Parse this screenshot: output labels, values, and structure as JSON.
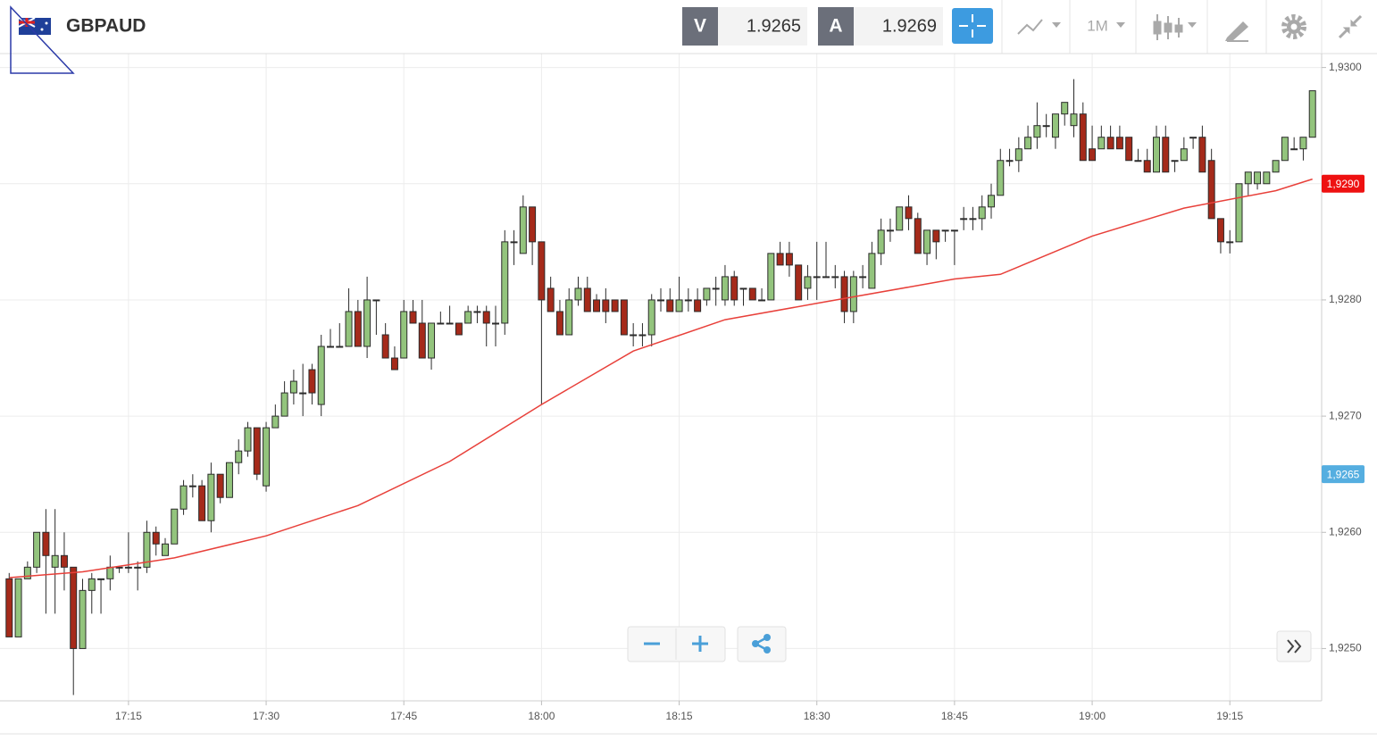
{
  "header": {
    "symbol": "GBPAUD",
    "bid_label": "V",
    "bid": 1.9265,
    "ask_label": "A",
    "ask": 1.9269,
    "timeframe": "1M"
  },
  "chart_data": {
    "type": "candlestick",
    "x": [
      "17:02",
      "17:03",
      "17:04",
      "17:05",
      "17:06",
      "17:07",
      "17:08",
      "17:09",
      "17:10",
      "17:11",
      "17:12",
      "17:13",
      "17:14",
      "17:15",
      "17:16",
      "17:17",
      "17:18",
      "17:19",
      "17:20",
      "17:21",
      "17:22",
      "17:23",
      "17:24",
      "17:25",
      "17:26",
      "17:27",
      "17:28",
      "17:29",
      "17:30",
      "17:31",
      "17:32",
      "17:33",
      "17:34",
      "17:35",
      "17:36",
      "17:37",
      "17:38",
      "17:39",
      "17:40",
      "17:41",
      "17:42",
      "17:43",
      "17:44",
      "17:45",
      "17:46",
      "17:47",
      "17:48",
      "17:49",
      "17:50",
      "17:51",
      "17:52",
      "17:53",
      "17:54",
      "17:55",
      "17:56",
      "17:57",
      "17:58",
      "17:59",
      "18:00",
      "18:01",
      "18:02",
      "18:03",
      "18:04",
      "18:05",
      "18:06",
      "18:07",
      "18:08",
      "18:09",
      "18:10",
      "18:11",
      "18:12",
      "18:13",
      "18:14",
      "18:15",
      "18:16",
      "18:17",
      "18:18",
      "18:19",
      "18:20",
      "18:21",
      "18:22",
      "18:23",
      "18:24",
      "18:25",
      "18:26",
      "18:27",
      "18:28",
      "18:29",
      "18:30",
      "18:31",
      "18:32",
      "18:33",
      "18:34",
      "18:35",
      "18:36",
      "18:37",
      "18:38",
      "18:39",
      "18:40",
      "18:41",
      "18:42",
      "18:43",
      "18:44",
      "18:45",
      "18:46",
      "18:47",
      "18:48",
      "18:49",
      "18:50",
      "18:51",
      "18:52",
      "18:53",
      "18:54",
      "18:55",
      "18:56",
      "18:57",
      "18:58",
      "18:59",
      "19:00",
      "19:01",
      "19:02",
      "19:03",
      "19:04",
      "19:05",
      "19:06",
      "19:07",
      "19:08",
      "19:09",
      "19:10",
      "19:11",
      "19:12",
      "19:13",
      "19:14",
      "19:15",
      "19:16",
      "19:17",
      "19:18",
      "19:19",
      "19:20",
      "19:21",
      "19:22",
      "19:23",
      "19:24"
    ],
    "open": [
      1.9256,
      1.9251,
      1.9256,
      1.9257,
      1.926,
      1.9257,
      1.9258,
      1.9257,
      1.925,
      1.9255,
      1.9256,
      1.9256,
      1.9257,
      1.9257,
      1.9257,
      1.9257,
      1.926,
      1.9258,
      1.9259,
      1.9262,
      1.9264,
      1.9264,
      1.9261,
      1.9265,
      1.9263,
      1.9266,
      1.9267,
      1.9269,
      1.9264,
      1.9269,
      1.927,
      1.9272,
      1.9272,
      1.9274,
      1.9271,
      1.9276,
      1.9276,
      1.9276,
      1.9279,
      1.9276,
      1.928,
      1.9277,
      1.9275,
      1.9275,
      1.9279,
      1.9278,
      1.9275,
      1.9278,
      1.9278,
      1.9278,
      1.9278,
      1.9279,
      1.9279,
      1.9278,
      1.9278,
      1.9285,
      1.9284,
      1.9288,
      1.9285,
      1.9281,
      1.9279,
      1.9277,
      1.928,
      1.9281,
      1.928,
      1.928,
      1.928,
      1.928,
      1.9277,
      1.9277,
      1.9277,
      1.928,
      1.928,
      1.9279,
      1.928,
      1.928,
      1.928,
      1.9281,
      1.928,
      1.9282,
      1.9281,
      1.9281,
      1.928,
      1.928,
      1.9284,
      1.9284,
      1.9283,
      1.9281,
      1.9282,
      1.9282,
      1.9282,
      1.9282,
      1.9279,
      1.9282,
      1.9281,
      1.9284,
      1.9286,
      1.9286,
      1.9288,
      1.9287,
      1.9284,
      1.9286,
      1.9286,
      1.9286,
      1.9287,
      1.9287,
      1.9287,
      1.9288,
      1.9289,
      1.9292,
      1.9292,
      1.9293,
      1.9294,
      1.9295,
      1.9294,
      1.9296,
      1.9295,
      1.9296,
      1.9293,
      1.9293,
      1.9294,
      1.9294,
      1.9294,
      1.9292,
      1.9292,
      1.9291,
      1.9294,
      1.9292,
      1.9292,
      1.9294,
      1.9294,
      1.9292,
      1.9287,
      1.9285,
      1.9285,
      1.929,
      1.929,
      1.929,
      1.9291,
      1.9292,
      1.9293,
      1.9293,
      1.9294
    ],
    "high": [
      1.92565,
      1.9256,
      1.92575,
      1.926,
      1.9262,
      1.9262,
      1.926,
      1.9257,
      1.9256,
      1.92565,
      1.9256,
      1.9258,
      1.9257,
      1.926,
      1.92575,
      1.9261,
      1.92605,
      1.92595,
      1.9262,
      1.92645,
      1.9265,
      1.92645,
      1.9266,
      1.9265,
      1.9266,
      1.9268,
      1.92695,
      1.9269,
      1.92695,
      1.9271,
      1.9273,
      1.9274,
      1.92745,
      1.92745,
      1.9277,
      1.92775,
      1.9278,
      1.9281,
      1.928,
      1.9282,
      1.928,
      1.9278,
      1.9276,
      1.928,
      1.928,
      1.928,
      1.9278,
      1.9279,
      1.92795,
      1.9278,
      1.92795,
      1.92795,
      1.92795,
      1.92795,
      1.9286,
      1.9286,
      1.9289,
      1.9288,
      1.9285,
      1.9282,
      1.928,
      1.9281,
      1.9282,
      1.9282,
      1.92805,
      1.9281,
      1.928,
      1.928,
      1.9278,
      1.9278,
      1.92805,
      1.9281,
      1.9281,
      1.9282,
      1.9281,
      1.9281,
      1.9281,
      1.9282,
      1.9283,
      1.92825,
      1.9281,
      1.9281,
      1.9281,
      1.9284,
      1.9285,
      1.9285,
      1.9283,
      1.9283,
      1.9285,
      1.9285,
      1.9283,
      1.92825,
      1.92825,
      1.9283,
      1.9285,
      1.9287,
      1.9287,
      1.9288,
      1.9289,
      1.92875,
      1.9286,
      1.9286,
      1.9286,
      1.9286,
      1.9288,
      1.9288,
      1.9289,
      1.929,
      1.9293,
      1.9293,
      1.9294,
      1.9295,
      1.9297,
      1.9296,
      1.9296,
      1.9297,
      1.9299,
      1.9297,
      1.9295,
      1.9295,
      1.9295,
      1.9295,
      1.9294,
      1.9293,
      1.9293,
      1.9295,
      1.9295,
      1.9292,
      1.9294,
      1.9294,
      1.9295,
      1.9293,
      1.9287,
      1.9286,
      1.929,
      1.9291,
      1.9291,
      1.9291,
      1.9292,
      1.9294,
      1.9294,
      1.9294,
      1.9298
    ],
    "low": [
      1.9251,
      1.9251,
      1.9256,
      1.92565,
      1.9253,
      1.9253,
      1.9255,
      1.9246,
      1.925,
      1.9253,
      1.9253,
      1.9255,
      1.92565,
      1.92565,
      1.9255,
      1.92565,
      1.9258,
      1.9258,
      1.9259,
      1.92615,
      1.9263,
      1.9261,
      1.926,
      1.92625,
      1.9263,
      1.9265,
      1.92665,
      1.92645,
      1.92635,
      1.9269,
      1.927,
      1.9271,
      1.927,
      1.9271,
      1.927,
      1.9276,
      1.9276,
      1.9276,
      1.9276,
      1.9275,
      1.9277,
      1.9275,
      1.9274,
      1.9275,
      1.9278,
      1.9275,
      1.9274,
      1.9278,
      1.9278,
      1.9277,
      1.9278,
      1.9278,
      1.9276,
      1.9276,
      1.9277,
      1.9283,
      1.9284,
      1.9283,
      1.9271,
      1.9279,
      1.9277,
      1.9277,
      1.92795,
      1.9279,
      1.9279,
      1.9278,
      1.9279,
      1.9277,
      1.9276,
      1.9276,
      1.9276,
      1.9279,
      1.9279,
      1.9279,
      1.9279,
      1.9279,
      1.92795,
      1.92795,
      1.92795,
      1.92795,
      1.92795,
      1.928,
      1.928,
      1.928,
      1.9283,
      1.9282,
      1.928,
      1.928,
      1.928,
      1.9282,
      1.9281,
      1.9278,
      1.9278,
      1.9281,
      1.9281,
      1.9283,
      1.9285,
      1.9286,
      1.9286,
      1.9284,
      1.9283,
      1.92835,
      1.9285,
      1.9283,
      1.9286,
      1.9286,
      1.9286,
      1.9287,
      1.9289,
      1.92915,
      1.9291,
      1.9293,
      1.9293,
      1.9294,
      1.9293,
      1.9295,
      1.9294,
      1.9292,
      1.9292,
      1.9293,
      1.9293,
      1.9293,
      1.9292,
      1.9292,
      1.9291,
      1.9291,
      1.9291,
      1.9291,
      1.9292,
      1.9293,
      1.9291,
      1.9287,
      1.9284,
      1.9284,
      1.9285,
      1.9289,
      1.92895,
      1.929,
      1.9291,
      1.9292,
      1.9293,
      1.9292,
      1.9294
    ],
    "close": [
      1.9251,
      1.9256,
      1.9257,
      1.926,
      1.9258,
      1.9258,
      1.9257,
      1.925,
      1.9255,
      1.9256,
      1.9256,
      1.9257,
      1.9257,
      1.9257,
      1.9257,
      1.926,
      1.9259,
      1.9259,
      1.9262,
      1.9264,
      1.9264,
      1.9261,
      1.9265,
      1.9263,
      1.9266,
      1.9267,
      1.9269,
      1.9265,
      1.9269,
      1.927,
      1.9272,
      1.9273,
      1.9272,
      1.9272,
      1.9276,
      1.9276,
      1.9276,
      1.9279,
      1.9276,
      1.928,
      1.928,
      1.9275,
      1.9274,
      1.9279,
      1.9278,
      1.9275,
      1.9278,
      1.9278,
      1.9278,
      1.9277,
      1.9279,
      1.9279,
      1.9278,
      1.9278,
      1.9285,
      1.9285,
      1.9288,
      1.9285,
      1.928,
      1.9279,
      1.9277,
      1.928,
      1.9281,
      1.9279,
      1.9279,
      1.9279,
      1.9279,
      1.9277,
      1.9277,
      1.9277,
      1.928,
      1.928,
      1.9279,
      1.928,
      1.928,
      1.9279,
      1.9281,
      1.9281,
      1.9282,
      1.928,
      1.9281,
      1.928,
      1.928,
      1.9284,
      1.9283,
      1.9283,
      1.928,
      1.9282,
      1.9282,
      1.9282,
      1.9282,
      1.9279,
      1.9282,
      1.9282,
      1.9284,
      1.9286,
      1.9286,
      1.9288,
      1.9287,
      1.9284,
      1.9286,
      1.9285,
      1.9286,
      1.9286,
      1.9287,
      1.9287,
      1.9288,
      1.9289,
      1.9292,
      1.9292,
      1.9293,
      1.9294,
      1.9295,
      1.9295,
      1.9296,
      1.9297,
      1.9296,
      1.9292,
      1.9292,
      1.9294,
      1.9293,
      1.9293,
      1.9292,
      1.9292,
      1.9291,
      1.9294,
      1.9291,
      1.9292,
      1.9293,
      1.9294,
      1.9291,
      1.9287,
      1.9285,
      1.9285,
      1.929,
      1.9291,
      1.9291,
      1.9291,
      1.9292,
      1.9294,
      1.9293,
      1.9294,
      1.9298
    ],
    "up_color": "#93c47d",
    "down_color": "#a52a1a",
    "outline_color": "#2b2b2b",
    "lines": [
      {
        "color": "#e8403a",
        "x": [
          "17:02",
          "17:10",
          "17:20",
          "17:30",
          "17:40",
          "17:50",
          "18:00",
          "18:10",
          "18:20",
          "18:30",
          "18:40",
          "18:45",
          "18:50",
          "19:00",
          "19:10",
          "19:20",
          "19:24"
        ],
        "values": [
          1.92561,
          1.92566,
          1.92578,
          1.92597,
          1.92623,
          1.92661,
          1.9271,
          1.92756,
          1.92783,
          1.92797,
          1.92811,
          1.92818,
          1.92822,
          1.92855,
          1.92879,
          1.92894,
          1.92904
        ]
      }
    ],
    "xlim": [
      "17:01",
      "19:25"
    ],
    "xticks": [
      "17:15",
      "17:30",
      "17:45",
      "18:00",
      "18:15",
      "18:30",
      "18:45",
      "19:00",
      "19:15"
    ],
    "ylim": [
      1.92455,
      1.93012
    ],
    "yticks": [
      {
        "value": 1.925,
        "label": "1,9250"
      },
      {
        "value": 1.926,
        "label": "1,9260"
      },
      {
        "value": 1.927,
        "label": "1,9270"
      },
      {
        "value": 1.928,
        "label": "1,9280"
      },
      {
        "value": 1.929,
        "label": "1,9290"
      },
      {
        "value": 1.93,
        "label": "1,9300"
      }
    ],
    "grid": true,
    "price_markers": [
      {
        "value": 1.929,
        "label": "1,9290",
        "color": "#ee1111"
      },
      {
        "value": 1.9265,
        "label": "1,9265",
        "color": "#55aee0"
      }
    ]
  }
}
